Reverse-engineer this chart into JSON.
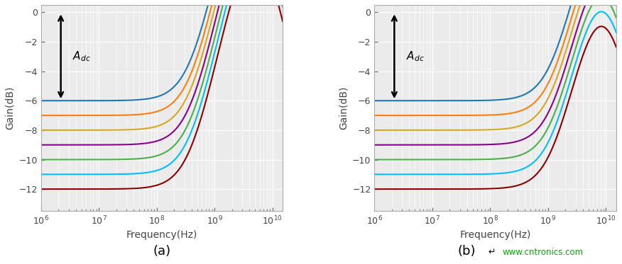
{
  "dc_gains_dB": [
    -6,
    -7,
    -8,
    -9,
    -10,
    -11,
    -12
  ],
  "colors": [
    "#1f77b4",
    "#ff7f0e",
    "#d4a820",
    "#8B008B",
    "#4daf4a",
    "#00bfff",
    "#8B0000"
  ],
  "freq_range": [
    1000000.0,
    15000000000.0
  ],
  "xlabel": "Frequency(Hz)",
  "ylabel": "Gain(dB)",
  "ylim": [
    -13.5,
    0.5
  ],
  "yticks": [
    0,
    -2,
    -4,
    -6,
    -8,
    -10,
    -12
  ],
  "label_a": "(a)",
  "label_b": "(b)",
  "adc_label": "$A_{dc}$",
  "plot_a": {
    "zero_freq": 400000000.0,
    "pole1_freq": 4500000000.0,
    "pole2_freq": 5500000000.0
  },
  "plot_b": {
    "zero_freq": 1200000000.0,
    "pole1_freq": 8000000000.0,
    "pole2_freq": 9000000000.0
  },
  "background_color": "#ebebeb",
  "grid_color": "#ffffff",
  "watermark": "www.cntronics.com",
  "watermark_color": "#00aa00"
}
